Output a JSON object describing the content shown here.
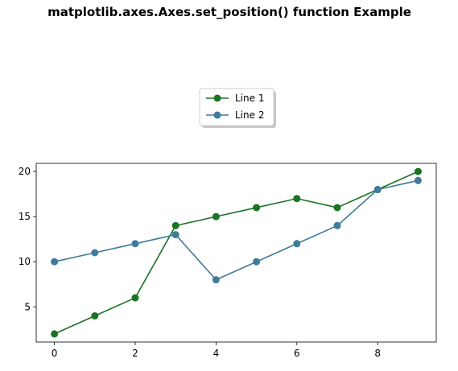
{
  "chart_data": {
    "type": "line",
    "title": "matplotlib.axes.Axes.set_position() function Example",
    "xlabel": "",
    "ylabel": "",
    "x": [
      0,
      1,
      2,
      3,
      4,
      5,
      6,
      7,
      8,
      9
    ],
    "xlim": [
      -0.45,
      9.45
    ],
    "ylim": [
      1.1,
      20.9
    ],
    "xticks": [
      0,
      2,
      4,
      6,
      8
    ],
    "yticks": [
      5,
      10,
      15,
      20
    ],
    "xtick_labels": [
      "0",
      "2",
      "4",
      "6",
      "8"
    ],
    "ytick_labels": [
      "5",
      "10",
      "15",
      "20"
    ],
    "grid": false,
    "legend_placement": "upper-center, above plot",
    "series": [
      {
        "name": "Line 1",
        "values": [
          2,
          4,
          6,
          14,
          15,
          16,
          17,
          16,
          18,
          20
        ],
        "color": "#1b7324",
        "marker": "circle"
      },
      {
        "name": "Line 2",
        "values": [
          10,
          11,
          12,
          13,
          8,
          10,
          12,
          14,
          18,
          19
        ],
        "color": "#3f7b9a",
        "marker": "circle"
      }
    ]
  }
}
